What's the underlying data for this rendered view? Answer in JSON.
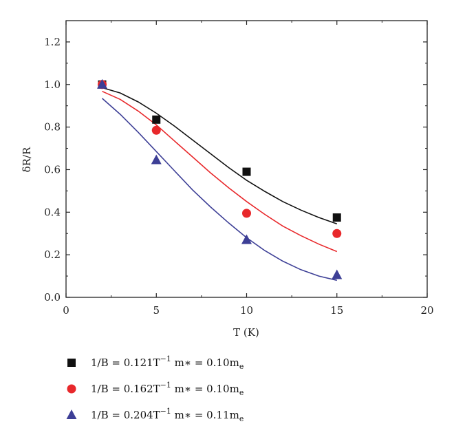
{
  "chart_data": {
    "type": "scatter",
    "xlabel": "T (K)",
    "ylabel": "δR/R",
    "xlim": [
      0,
      20
    ],
    "ylim": [
      0,
      1.3
    ],
    "xticks": [
      "0",
      "5",
      "10",
      "15",
      "20"
    ],
    "yticks": [
      "0.0",
      "0.2",
      "0.4",
      "0.6",
      "0.8",
      "1.0",
      "1.2"
    ],
    "legend_position": "below",
    "series": [
      {
        "name": "1/B = 0.121T⁻¹ m∗ = 0.10mₑ",
        "legend": {
          "pre": "1/B = 0.121T",
          "sup": "−1",
          "mid": "   m∗ = 0.10m",
          "sub": "e"
        },
        "marker": "square",
        "color": "#111111",
        "x": [
          2,
          5,
          10,
          15
        ],
        "y": [
          1.0,
          0.835,
          0.59,
          0.375
        ],
        "fit_x": [
          2,
          3,
          4,
          5,
          6,
          7,
          8,
          9,
          10,
          11,
          12,
          13,
          14,
          15
        ],
        "fit_y": [
          0.985,
          0.96,
          0.918,
          0.865,
          0.805,
          0.74,
          0.675,
          0.61,
          0.55,
          0.498,
          0.45,
          0.41,
          0.375,
          0.345
        ]
      },
      {
        "name": "1/B = 0.162T⁻¹ m∗ = 0.10mₑ",
        "legend": {
          "pre": "1/B = 0.162T",
          "sup": "−1",
          "mid": "   m∗ = 0.10m",
          "sub": "e"
        },
        "marker": "circle",
        "color": "#e8282b",
        "x": [
          2,
          5,
          10,
          15
        ],
        "y": [
          1.0,
          0.785,
          0.395,
          0.3
        ],
        "fit_x": [
          2,
          3,
          4,
          5,
          6,
          7,
          8,
          9,
          10,
          11,
          12,
          13,
          14,
          15
        ],
        "fit_y": [
          0.968,
          0.93,
          0.875,
          0.81,
          0.735,
          0.66,
          0.585,
          0.515,
          0.45,
          0.39,
          0.335,
          0.29,
          0.25,
          0.215
        ]
      },
      {
        "name": "1/B = 0.204T⁻¹ m∗ = 0.11mₑ",
        "legend": {
          "pre": "1/B = 0.204T",
          "sup": "−1",
          "mid": "   m∗ = 0.11m",
          "sub": "e"
        },
        "marker": "triangle",
        "color": "#3d3f96",
        "x": [
          2,
          5,
          10,
          15
        ],
        "y": [
          1.0,
          0.645,
          0.27,
          0.105
        ],
        "fit_x": [
          2,
          3,
          4,
          5,
          6,
          7,
          8,
          9,
          10,
          11,
          12,
          13,
          14,
          15
        ],
        "fit_y": [
          0.935,
          0.86,
          0.775,
          0.685,
          0.595,
          0.505,
          0.425,
          0.35,
          0.28,
          0.22,
          0.17,
          0.13,
          0.1,
          0.08
        ]
      }
    ]
  }
}
